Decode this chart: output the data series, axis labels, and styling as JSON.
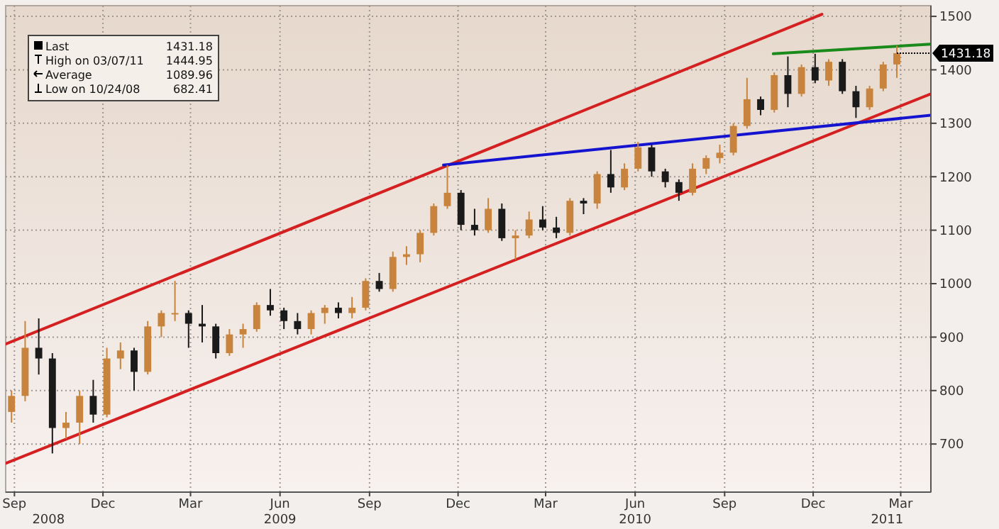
{
  "chart_data": {
    "type": "candlestick",
    "colors": [
      "#c8843c",
      "#c8843c",
      "#1a1a1a",
      "#1a1a1a",
      "#c8843c",
      "#c8843c",
      "#1a1a1a",
      "#c8843c",
      "#c8843c",
      "#1a1a1a",
      "#c8843c",
      "#c8843c",
      "#c8843c",
      "#1a1a1a",
      "#1a1a1a",
      "#1a1a1a",
      "#c8843c",
      "#c8843c",
      "#c8843c",
      "#1a1a1a",
      "#1a1a1a",
      "#1a1a1a",
      "#c8843c",
      "#c8843c",
      "#1a1a1a",
      "#c8843c",
      "#c8843c",
      "#1a1a1a",
      "#c8843c",
      "#c8843c",
      "#c8843c",
      "#c8843c",
      "#c8843c",
      "#1a1a1a",
      "#1a1a1a",
      "#c8843c",
      "#1a1a1a",
      "#c8843c",
      "#c8843c",
      "#1a1a1a",
      "#1a1a1a",
      "#c8843c",
      "#1a1a1a",
      "#c8843c",
      "#1a1a1a",
      "#c8843c",
      "#c8843c",
      "#1a1a1a",
      "#1a1a1a",
      "#1a1a1a",
      "#c8843c",
      "#c8843c",
      "#c8843c",
      "#c8843c",
      "#c8843c",
      "#1a1a1a",
      "#c8843c",
      "#1a1a1a",
      "#c8843c",
      "#1a1a1a",
      "#c8843c",
      "#1a1a1a",
      "#1a1a1a",
      "#c8843c",
      "#c8843c",
      "#c8843c"
    ],
    "x": [
      "2008-09-12",
      "2008-09-26",
      "2008-10-10",
      "2008-10-24",
      "2008-11-07",
      "2008-11-21",
      "2008-12-05",
      "2008-12-19",
      "2009-01-02",
      "2009-01-16",
      "2009-01-30",
      "2009-02-13",
      "2009-02-27",
      "2009-03-13",
      "2009-03-27",
      "2009-04-10",
      "2009-04-24",
      "2009-05-08",
      "2009-05-22",
      "2009-06-05",
      "2009-06-19",
      "2009-07-03",
      "2009-07-17",
      "2009-07-31",
      "2009-08-14",
      "2009-08-28",
      "2009-09-11",
      "2009-09-25",
      "2009-10-09",
      "2009-10-23",
      "2009-11-06",
      "2009-11-20",
      "2009-12-04",
      "2009-12-18",
      "2010-01-01",
      "2010-01-15",
      "2010-01-29",
      "2010-02-12",
      "2010-02-26",
      "2010-03-12",
      "2010-03-26",
      "2010-04-09",
      "2010-04-23",
      "2010-05-07",
      "2010-05-21",
      "2010-06-04",
      "2010-06-18",
      "2010-07-02",
      "2010-07-16",
      "2010-07-30",
      "2010-08-13",
      "2010-08-27",
      "2010-09-10",
      "2010-09-24",
      "2010-10-08",
      "2010-10-22",
      "2010-11-05",
      "2010-11-19",
      "2010-12-03",
      "2010-12-17",
      "2010-12-31",
      "2011-01-14",
      "2011-01-28",
      "2011-02-11",
      "2011-02-25",
      "2011-03-11"
    ],
    "ohlc": [
      [
        760,
        800,
        740,
        790
      ],
      [
        790,
        930,
        780,
        880
      ],
      [
        880,
        935,
        830,
        860
      ],
      [
        860,
        870,
        682.41,
        730
      ],
      [
        730,
        760,
        710,
        740
      ],
      [
        740,
        800,
        700,
        790
      ],
      [
        790,
        820,
        740,
        755
      ],
      [
        755,
        880,
        750,
        860
      ],
      [
        860,
        890,
        840,
        875
      ],
      [
        875,
        880,
        800,
        835
      ],
      [
        835,
        930,
        830,
        920
      ],
      [
        920,
        950,
        900,
        945
      ],
      [
        945,
        1005,
        930,
        945
      ],
      [
        945,
        950,
        880,
        925
      ],
      [
        925,
        960,
        890,
        920
      ],
      [
        920,
        925,
        860,
        870
      ],
      [
        870,
        915,
        865,
        905
      ],
      [
        905,
        925,
        880,
        915
      ],
      [
        915,
        965,
        910,
        960
      ],
      [
        960,
        990,
        940,
        950
      ],
      [
        950,
        955,
        915,
        930
      ],
      [
        930,
        945,
        905,
        915
      ],
      [
        915,
        950,
        905,
        945
      ],
      [
        945,
        960,
        925,
        955
      ],
      [
        955,
        965,
        935,
        945
      ],
      [
        945,
        975,
        935,
        955
      ],
      [
        955,
        1010,
        950,
        1005
      ],
      [
        1005,
        1020,
        985,
        990
      ],
      [
        990,
        1060,
        985,
        1050
      ],
      [
        1050,
        1070,
        1035,
        1055
      ],
      [
        1055,
        1100,
        1040,
        1095
      ],
      [
        1095,
        1150,
        1090,
        1145
      ],
      [
        1145,
        1222,
        1140,
        1170
      ],
      [
        1170,
        1175,
        1100,
        1110
      ],
      [
        1110,
        1140,
        1090,
        1100
      ],
      [
        1100,
        1160,
        1095,
        1140
      ],
      [
        1140,
        1150,
        1080,
        1085
      ],
      [
        1085,
        1100,
        1045,
        1090
      ],
      [
        1090,
        1135,
        1085,
        1120
      ],
      [
        1120,
        1145,
        1100,
        1105
      ],
      [
        1105,
        1125,
        1085,
        1095
      ],
      [
        1095,
        1160,
        1090,
        1155
      ],
      [
        1155,
        1160,
        1130,
        1150
      ],
      [
        1150,
        1210,
        1140,
        1205
      ],
      [
        1205,
        1250,
        1170,
        1180
      ],
      [
        1180,
        1225,
        1175,
        1215
      ],
      [
        1215,
        1265,
        1210,
        1255
      ],
      [
        1255,
        1260,
        1200,
        1210
      ],
      [
        1210,
        1215,
        1180,
        1190
      ],
      [
        1190,
        1195,
        1155,
        1170
      ],
      [
        1170,
        1225,
        1165,
        1215
      ],
      [
        1215,
        1240,
        1205,
        1235
      ],
      [
        1235,
        1260,
        1225,
        1245
      ],
      [
        1245,
        1300,
        1240,
        1295
      ],
      [
        1295,
        1385,
        1290,
        1345
      ],
      [
        1345,
        1350,
        1315,
        1325
      ],
      [
        1325,
        1395,
        1320,
        1390
      ],
      [
        1390,
        1425,
        1330,
        1355
      ],
      [
        1355,
        1410,
        1350,
        1405
      ],
      [
        1405,
        1430,
        1375,
        1380
      ],
      [
        1380,
        1420,
        1370,
        1415
      ],
      [
        1415,
        1420,
        1355,
        1360
      ],
      [
        1360,
        1370,
        1310,
        1330
      ],
      [
        1330,
        1370,
        1325,
        1365
      ],
      [
        1365,
        1415,
        1360,
        1410
      ],
      [
        1410,
        1444.95,
        1385,
        1431.18
      ]
    ],
    "series": [
      {
        "type": "line",
        "color": "#d42020",
        "x": [
          "2008-09-06",
          "2010-12-24"
        ],
        "values": [
          887,
          1504
        ]
      },
      {
        "type": "line",
        "color": "#d42020",
        "x": [
          "2008-09-06",
          "2011-04-15"
        ],
        "values": [
          664,
          1355
        ]
      },
      {
        "type": "line",
        "color": "#1414d0",
        "x": [
          "2009-11-30",
          "2011-04-15"
        ],
        "values": [
          1222,
          1315
        ]
      },
      {
        "type": "line",
        "color": "#1a8a1a",
        "x": [
          "2010-11-04",
          "2011-04-15"
        ],
        "values": [
          1430,
          1448
        ]
      }
    ],
    "xlim": [
      "2008-09-06",
      "2011-04-15"
    ],
    "xticks": [
      {
        "value": "2008-09-15",
        "label": "Sep"
      },
      {
        "value": "2008-12-15",
        "label": "Dec"
      },
      {
        "value": "2009-03-15",
        "label": "Mar"
      },
      {
        "value": "2009-06-15",
        "label": "Jun"
      },
      {
        "value": "2009-09-15",
        "label": "Sep"
      },
      {
        "value": "2009-12-15",
        "label": "Dec"
      },
      {
        "value": "2010-03-15",
        "label": "Mar"
      },
      {
        "value": "2010-06-15",
        "label": "Jun"
      },
      {
        "value": "2010-09-15",
        "label": "Sep"
      },
      {
        "value": "2010-12-15",
        "label": "Dec"
      },
      {
        "value": "2011-03-15",
        "label": "Mar"
      }
    ],
    "x2lim": [
      "2008-09-06",
      "2011-04-15"
    ],
    "x2ticks": [
      {
        "value": "2008-10-20",
        "label": "2008"
      },
      {
        "value": "2009-06-15",
        "label": "2009"
      },
      {
        "value": "2010-06-15",
        "label": "2010"
      },
      {
        "value": "2011-03-01",
        "label": "2011"
      }
    ],
    "ylim": [
      610,
      1520
    ],
    "yticks": [
      700,
      800,
      900,
      1000,
      1100,
      1200,
      1300,
      1400,
      1500
    ],
    "grid": true,
    "annotations": [
      "Last 1431.18",
      "High on 03/07/11 1444.95",
      "Average 1089.96",
      "Low on 10/24/08 682.41",
      {
        "text": "1431.18",
        "x": "2011-03-11",
        "y": 1431.18
      }
    ]
  }
}
